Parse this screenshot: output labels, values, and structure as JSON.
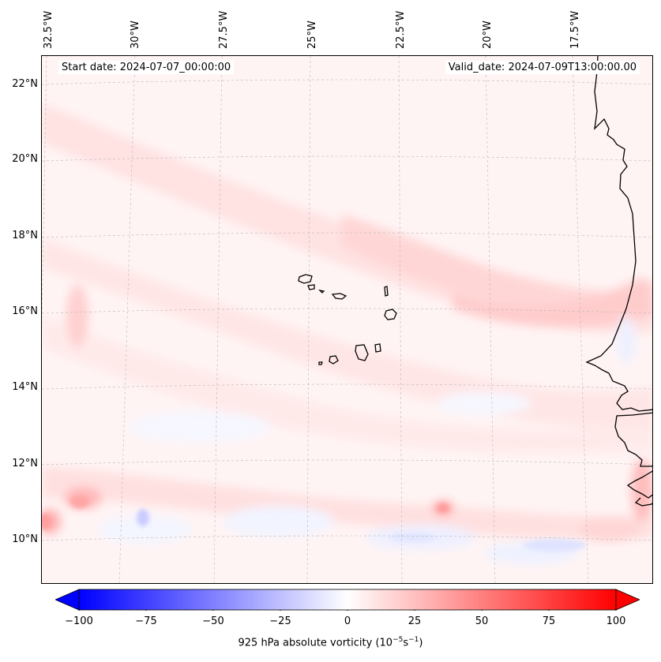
{
  "header": {
    "start_date": "Start date: 2024-07-07_00:00:00",
    "valid_date": "Valid_date: 2024-07-09T13:00:00.00"
  },
  "lat_labels": [
    "22°N",
    "20°N",
    "18°N",
    "16°N",
    "14°N",
    "12°N",
    "10°N"
  ],
  "lon_labels": [
    "32.5°W",
    "30°W",
    "27.5°W",
    "25°W",
    "22.5°W",
    "20°W",
    "17.5°W"
  ],
  "colorbar": {
    "ticks": [
      "−100",
      "−75",
      "−50",
      "−25",
      "0",
      "25",
      "50",
      "75",
      "100"
    ],
    "label": "925 hPa absolute vorticity (10",
    "label_exp1": "−5",
    "label_mid": "s",
    "label_exp2": "−1",
    "label_end": ")",
    "min_color": "#0000ff",
    "mid_color": "#ffffff",
    "max_color": "#ff0000"
  },
  "colors": {
    "coastline": "#000000",
    "gridline": "#b0b0b0"
  }
}
